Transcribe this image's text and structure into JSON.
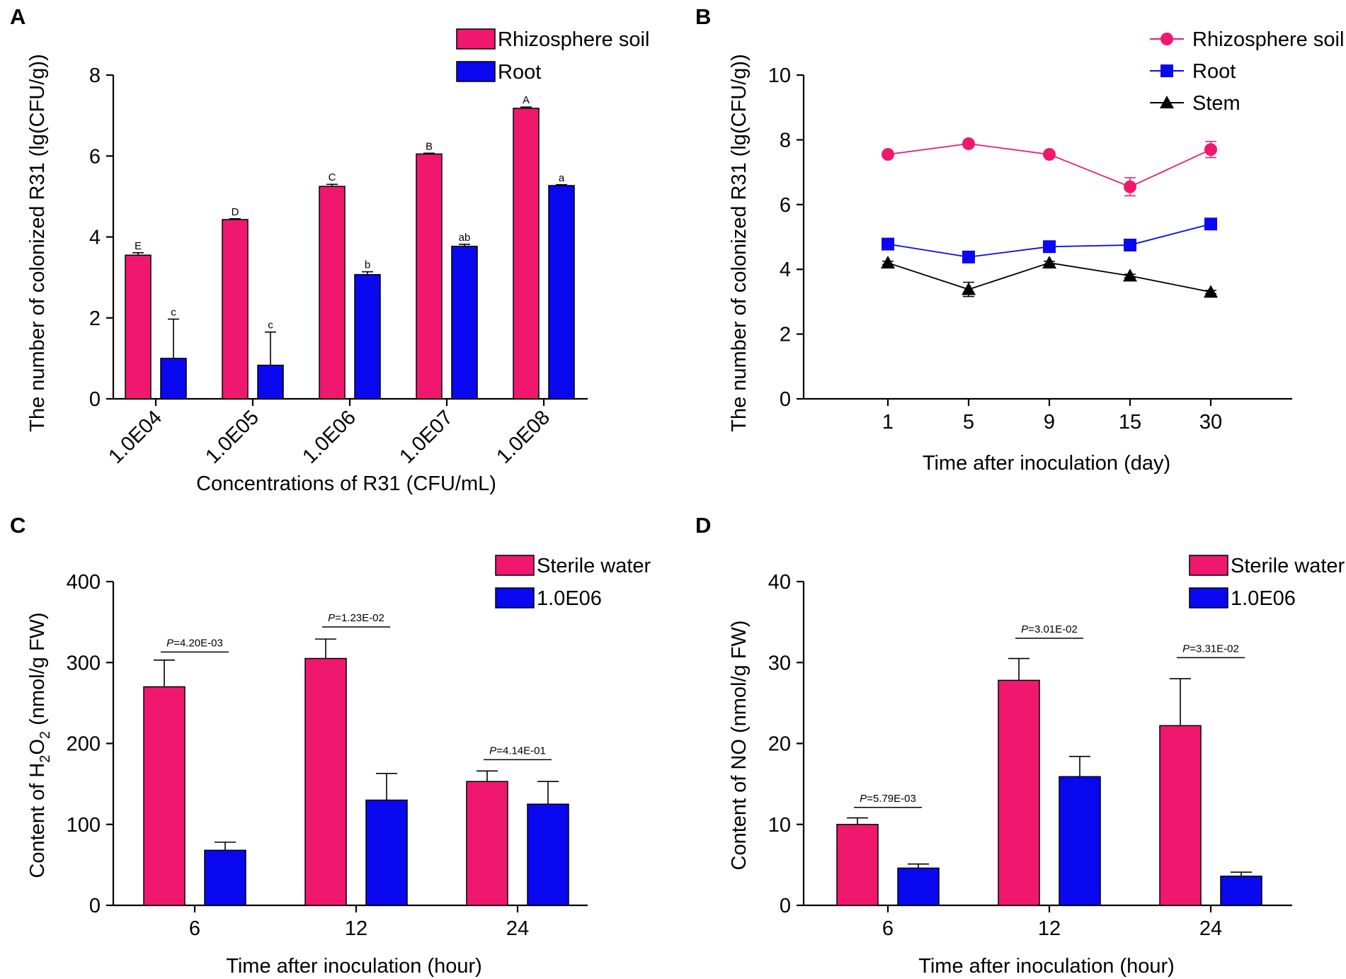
{
  "colors": {
    "pink": "#f0186e",
    "blue": "#0a08f0",
    "black": "#000000"
  },
  "chart_data": [
    {
      "panel": "A",
      "type": "bar",
      "xlabel": "Concentrations of R31 (CFU/mL)",
      "ylabel": "The number of colonized R31 (lg(CFU/g))",
      "ylim": [
        0,
        8
      ],
      "yticks": [
        0,
        2,
        4,
        6,
        8
      ],
      "categories": [
        "1.0E04",
        "1.0E05",
        "1.0E06",
        "1.0E07",
        "1.0E08"
      ],
      "series": [
        {
          "name": "Rhizosphere soil",
          "color": "#f0186e",
          "values": [
            3.55,
            4.43,
            5.25,
            6.05,
            7.18
          ],
          "errors": [
            0.06,
            0.02,
            0.05,
            0.02,
            0.03
          ],
          "labels": [
            "E",
            "D",
            "C",
            "B",
            "A"
          ]
        },
        {
          "name": "Root",
          "color": "#0a08f0",
          "values": [
            1.0,
            0.83,
            3.07,
            3.77,
            5.27
          ],
          "errors": [
            0.97,
            0.82,
            0.07,
            0.05,
            0.02
          ],
          "labels": [
            "c",
            "c",
            "b",
            "ab",
            "a"
          ]
        }
      ],
      "legend": "top-right"
    },
    {
      "panel": "B",
      "type": "line",
      "xlabel": "Time after inoculation (day)",
      "ylabel": "The number of colonized R31 (lg(CFU/g))",
      "ylim": [
        0,
        10
      ],
      "yticks": [
        0,
        2,
        4,
        6,
        8,
        10
      ],
      "categories": [
        "1",
        "5",
        "9",
        "15",
        "30"
      ],
      "series": [
        {
          "name": "Rhizosphere soil",
          "color": "#f0186e",
          "marker": "circle",
          "values": [
            7.55,
            7.88,
            7.55,
            6.55,
            7.7
          ],
          "errors": [
            0.05,
            0.05,
            0.05,
            0.28,
            0.25
          ]
        },
        {
          "name": "Root",
          "color": "#0a08f0",
          "marker": "square",
          "values": [
            4.78,
            4.38,
            4.7,
            4.75,
            5.4
          ],
          "errors": [
            0.05,
            0.05,
            0.05,
            0.05,
            0.05
          ]
        },
        {
          "name": "Stem",
          "color": "#000000",
          "marker": "triangle",
          "values": [
            4.2,
            3.38,
            4.2,
            3.8,
            3.3
          ],
          "errors": [
            0.05,
            0.22,
            0.05,
            0.05,
            0.05
          ]
        }
      ],
      "legend": "top-right"
    },
    {
      "panel": "C",
      "type": "bar",
      "xlabel": "Time after inoculation (hour)",
      "ylabel_prefix": "Content of H",
      "ylabel_sub1": "2",
      "ylabel_mid": "O",
      "ylabel_sub2": "2",
      "ylabel_suffix": " (nmol/g FW)",
      "ylim": [
        0,
        400
      ],
      "yticks": [
        0,
        100,
        200,
        300,
        400
      ],
      "categories": [
        "6",
        "12",
        "24"
      ],
      "series": [
        {
          "name": "Sterile water",
          "color": "#f0186e",
          "values": [
            270,
            305,
            153
          ],
          "errors": [
            33,
            24,
            13
          ]
        },
        {
          "name": "1.0E06",
          "color": "#0a08f0",
          "values": [
            68,
            130,
            125
          ],
          "errors": [
            10,
            33,
            28
          ]
        }
      ],
      "pvalues": [
        {
          "label": "P",
          "value": "=4.20E-03",
          "at": 313
        },
        {
          "label": "P",
          "value": "=1.23E-02",
          "at": 344
        },
        {
          "label": "P",
          "value": "=4.14E-01",
          "at": 180
        }
      ],
      "legend": "top-right"
    },
    {
      "panel": "D",
      "type": "bar",
      "xlabel": "Time after inoculation (hour)",
      "ylabel": "Content of NO (nmol/g FW)",
      "ylim": [
        0,
        40
      ],
      "yticks": [
        0,
        10,
        20,
        30,
        40
      ],
      "categories": [
        "6",
        "12",
        "24"
      ],
      "series": [
        {
          "name": "Sterile water",
          "color": "#f0186e",
          "values": [
            10,
            27.8,
            22.2
          ],
          "errors": [
            0.8,
            2.7,
            5.8
          ]
        },
        {
          "name": "1.0E06",
          "color": "#0a08f0",
          "values": [
            4.6,
            15.9,
            3.6
          ],
          "errors": [
            0.5,
            2.5,
            0.5
          ]
        }
      ],
      "pvalues": [
        {
          "label": "P",
          "value": "=5.79E-03",
          "at": 12.1
        },
        {
          "label": "P",
          "value": "=3.01E-02",
          "at": 33.0
        },
        {
          "label": "P",
          "value": "=3.31E-02",
          "at": 30.6
        }
      ],
      "legend": "top-right"
    }
  ]
}
